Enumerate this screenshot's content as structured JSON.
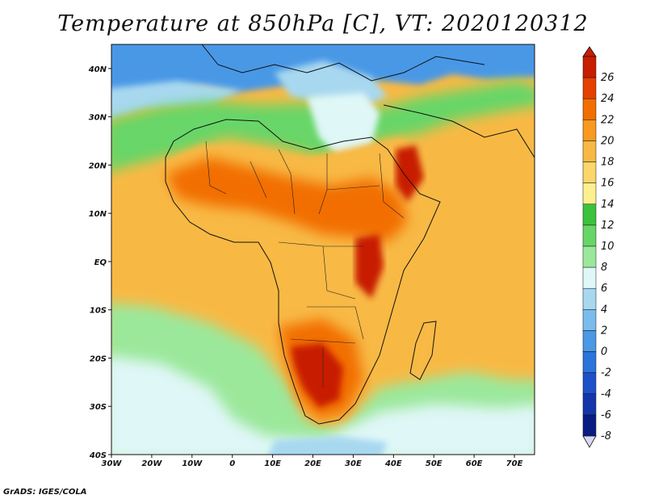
{
  "title": "Temperature at 850hPa [C], VT: 2020120312",
  "credit": "GrADS: IGES/COLA",
  "axes": {
    "x_ticks": [
      "30W",
      "20W",
      "10W",
      "0",
      "10E",
      "20E",
      "30E",
      "40E",
      "50E",
      "60E",
      "70E"
    ],
    "y_ticks": [
      "40N",
      "30N",
      "20N",
      "10N",
      "EQ",
      "10S",
      "20S",
      "30S",
      "40S"
    ],
    "lon_range": [
      -30,
      75
    ],
    "lat_range": [
      -40,
      45
    ]
  },
  "colorbar": {
    "labels": [
      "26",
      "24",
      "22",
      "20",
      "18",
      "16",
      "14",
      "12",
      "10",
      "8",
      "6",
      "4",
      "2",
      "0",
      "-2",
      "-4",
      "-6",
      "-8"
    ],
    "colors": [
      "#c81e00",
      "#e64000",
      "#f26e00",
      "#f79a1e",
      "#f8b944",
      "#fbd66a",
      "#fdf08f",
      "#3cc23c",
      "#67d667",
      "#9be89b",
      "#dff7f7",
      "#a8d8f0",
      "#7bbcec",
      "#4a98e6",
      "#2a74dc",
      "#1e50c8",
      "#1436aa",
      "#0a1c82"
    ]
  },
  "regions": {
    "ocean_south": "#9be89b",
    "ocean_cold": "#dff7f7",
    "warm_land": "#f8b944",
    "hot_land": "#f26e00",
    "hottest": "#c81e00",
    "north_cold": "#4a98e6",
    "north_mid": "#a8d8f0",
    "green_band": "#67d667"
  }
}
